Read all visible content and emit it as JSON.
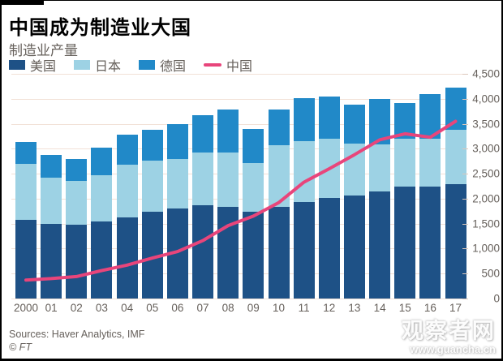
{
  "header": {
    "title": "中国成为制造业大国",
    "subtitle": "制造业产量"
  },
  "legend": [
    {
      "label": "美国",
      "type": "square",
      "color": "#1e5186"
    },
    {
      "label": "日本",
      "type": "square",
      "color": "#9dd2e4"
    },
    {
      "label": "德国",
      "type": "square",
      "color": "#2189c8"
    },
    {
      "label": "中国",
      "type": "line",
      "color": "#e8457b"
    }
  ],
  "footer": {
    "sources": "Sources: Haver Analytics, IMF",
    "copyright": "© FT"
  },
  "watermark": {
    "name": "观察者网",
    "url": "www.guancha.cn"
  },
  "colors": {
    "gridline": "#f2e1d7",
    "axis_text": "#66605b",
    "background": "#ffffff",
    "accent_bar": "#000000"
  },
  "chart_data": {
    "type": "bar",
    "stacked": true,
    "title": "中国成为制造业大国",
    "subtitle": "制造业产量",
    "categories": [
      "2000",
      "01",
      "02",
      "03",
      "04",
      "05",
      "06",
      "07",
      "08",
      "09",
      "10",
      "11",
      "12",
      "13",
      "14",
      "15",
      "16",
      "17"
    ],
    "series": [
      {
        "name": "美国",
        "color": "#1e5186",
        "values": [
          1580,
          1490,
          1480,
          1540,
          1630,
          1740,
          1800,
          1870,
          1830,
          1740,
          1840,
          1930,
          2010,
          2060,
          2140,
          2250,
          2240,
          2290
        ]
      },
      {
        "name": "日本",
        "color": "#9dd2e4",
        "values": [
          1110,
          930,
          880,
          930,
          1060,
          1020,
          990,
          1050,
          1090,
          980,
          1230,
          1230,
          1190,
          1050,
          940,
          950,
          960,
          1090
        ]
      },
      {
        "name": "德国",
        "color": "#2189c8",
        "values": [
          440,
          450,
          440,
          560,
          600,
          620,
          700,
          760,
          860,
          680,
          720,
          850,
          840,
          780,
          910,
          710,
          890,
          840
        ]
      }
    ],
    "line_series": {
      "name": "中国",
      "color": "#e8457b",
      "values": [
        370,
        400,
        440,
        560,
        670,
        810,
        940,
        1160,
        1460,
        1650,
        1920,
        2330,
        2600,
        2880,
        3180,
        3300,
        3230,
        3550
      ]
    },
    "ylim": [
      0,
      4500
    ],
    "ytick_step": 500,
    "yticks": [
      "0",
      "500",
      "1,000",
      "1,500",
      "2,000",
      "2,500",
      "3,000",
      "3,500",
      "4,000",
      "4,500"
    ],
    "grid": true,
    "legend_position": "top",
    "y_axis_side": "right"
  }
}
